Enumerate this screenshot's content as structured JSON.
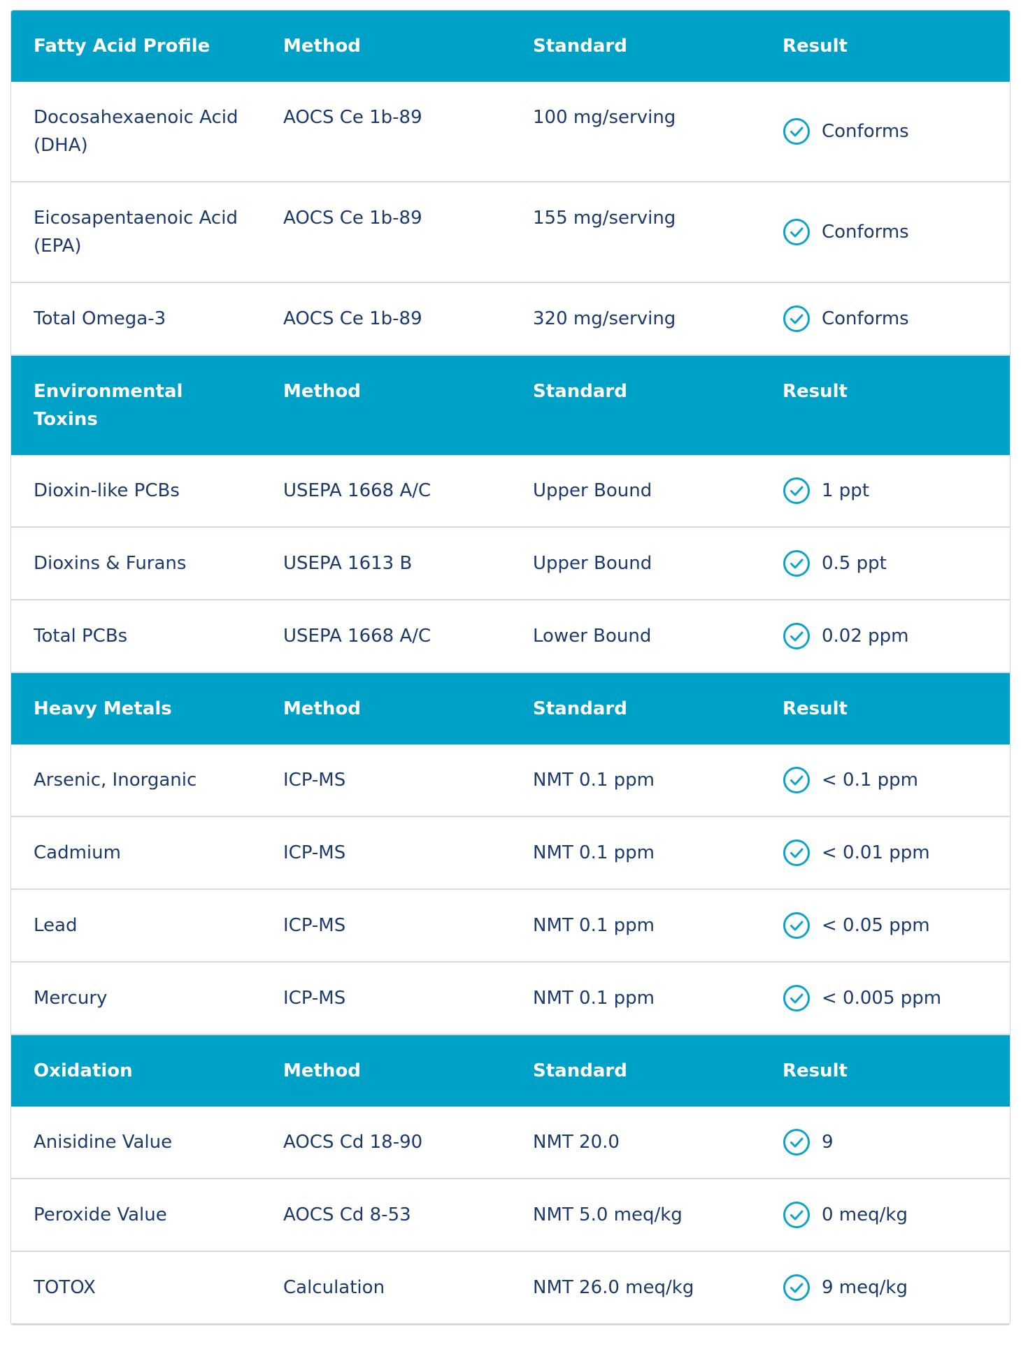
{
  "sections": [
    {
      "header": [
        "Fatty Acid Profile",
        "Method",
        "Standard",
        "Result"
      ],
      "rows": [
        [
          "Docosahexaenoic Acid (DHA)",
          "AOCS Ce 1b-89",
          "100 mg/serving",
          "Conforms"
        ],
        [
          "Eicosapentaenoic Acid (EPA)",
          "AOCS Ce 1b-89",
          "155 mg/serving",
          "Conforms"
        ],
        [
          "Total Omega-3",
          "AOCS Ce 1b-89",
          "320 mg/serving",
          "Conforms"
        ]
      ]
    },
    {
      "header": [
        "Environmental Toxins",
        "Method",
        "Standard",
        "Result"
      ],
      "rows": [
        [
          "Dioxin-like PCBs",
          "USEPA 1668 A/C",
          "Upper Bound",
          "1 ppt"
        ],
        [
          "Dioxins & Furans",
          "USEPA 1613 B",
          "Upper Bound",
          "0.5 ppt"
        ],
        [
          "Total PCBs",
          "USEPA 1668 A/C",
          "Lower Bound",
          "0.02 ppm"
        ]
      ]
    },
    {
      "header": [
        "Heavy Metals",
        "Method",
        "Standard",
        "Result"
      ],
      "rows": [
        [
          "Arsenic, Inorganic",
          "ICP-MS",
          "NMT 0.1 ppm",
          "< 0.1 ppm"
        ],
        [
          "Cadmium",
          "ICP-MS",
          "NMT 0.1 ppm",
          "< 0.01 ppm"
        ],
        [
          "Lead",
          "ICP-MS",
          "NMT 0.1 ppm",
          "< 0.05 ppm"
        ],
        [
          "Mercury",
          "ICP-MS",
          "NMT 0.1 ppm",
          "< 0.005 ppm"
        ]
      ]
    },
    {
      "header": [
        "Oxidation",
        "Method",
        "Standard",
        "Result"
      ],
      "rows": [
        [
          "Anisidine Value",
          "AOCS Cd 18-90",
          "NMT 20.0",
          "9"
        ],
        [
          "Peroxide Value",
          "AOCS Cd 8-53",
          "NMT 5.0 meq/kg",
          "0 meq/kg"
        ],
        [
          "TOTOX",
          "Calculation",
          "NMT 26.0 meq/kg",
          "9 meq/kg"
        ]
      ]
    }
  ]
}
